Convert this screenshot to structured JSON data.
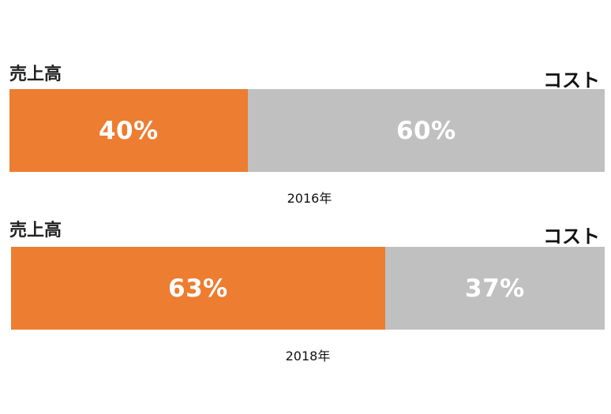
{
  "chart_data": {
    "type": "bar",
    "orientation": "horizontal",
    "stacked": true,
    "left_label": "売上高",
    "right_label": "コスト",
    "colors": {
      "left": "#ED7D31",
      "right": "#C0C0C0"
    },
    "rows": [
      {
        "year": "2016年",
        "left_value": 40,
        "right_value": 60,
        "left_text": "40%",
        "right_text": "60%"
      },
      {
        "year": "2018年",
        "left_value": 63,
        "right_value": 37,
        "left_text": "63%",
        "right_text": "37%"
      }
    ]
  }
}
